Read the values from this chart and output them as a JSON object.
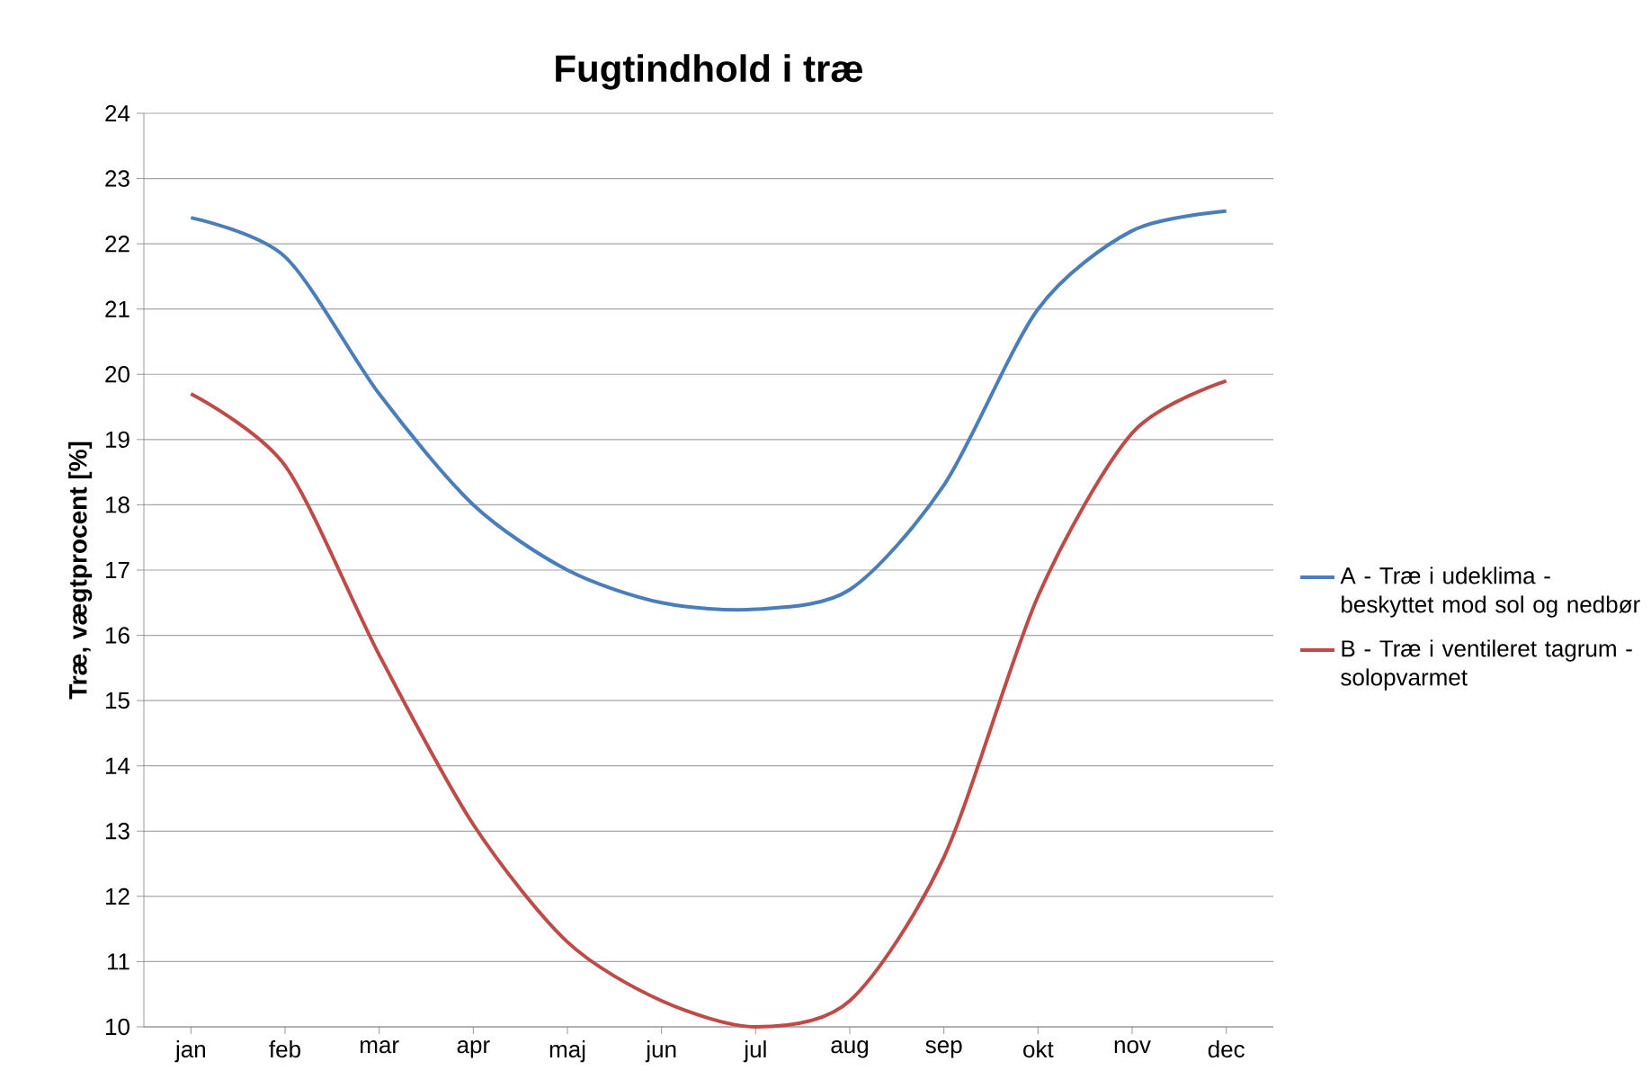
{
  "chart_data": {
    "type": "line",
    "title": "Fugtindhold i træ",
    "ylabel": "Træ, vægtprocent [%]",
    "categories": [
      "jan",
      "feb",
      "mar",
      "apr",
      "maj",
      "jun",
      "jul",
      "aug",
      "sep",
      "okt",
      "nov",
      "dec"
    ],
    "series": [
      {
        "name": "A - Træ i udeklima - beskyttet mod sol og nedbør",
        "color": "#4a7ebb",
        "values": [
          22.4,
          21.8,
          19.7,
          18.0,
          17.0,
          16.5,
          16.4,
          16.7,
          18.3,
          21.0,
          22.2,
          22.5
        ]
      },
      {
        "name": "B - Træ i ventileret tagrum - solopvarmet",
        "color": "#be4b48",
        "values": [
          19.7,
          18.6,
          15.7,
          13.1,
          11.3,
          10.4,
          10.0,
          10.4,
          12.6,
          16.6,
          19.1,
          19.9
        ]
      }
    ],
    "ylim": [
      10,
      24
    ],
    "yticks": [
      10,
      11,
      12,
      13,
      14,
      15,
      16,
      17,
      18,
      19,
      20,
      21,
      22,
      23,
      24
    ],
    "grid": "y",
    "legend": "right",
    "marker": "none",
    "line_style": "solid"
  }
}
